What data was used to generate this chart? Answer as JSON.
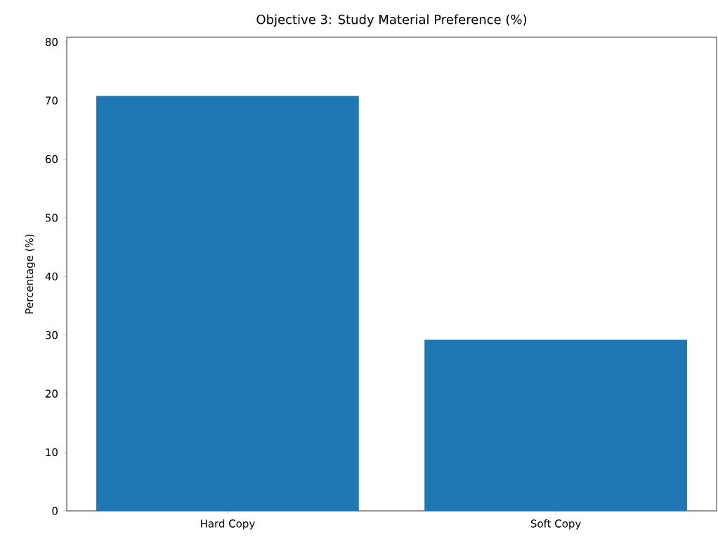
{
  "chart_data": {
    "type": "bar",
    "title": "Objective 3: Study Material Preference (%)",
    "ylabel": "Percentage (%)",
    "categories": [
      "Hard Copy",
      "Soft Copy"
    ],
    "values": [
      70.8,
      29.2
    ],
    "color": "#1f77b4",
    "ylim": [
      0,
      80.8
    ],
    "yticks": [
      0,
      10,
      20,
      30,
      40,
      50,
      60,
      70,
      80
    ],
    "grid": false
  }
}
